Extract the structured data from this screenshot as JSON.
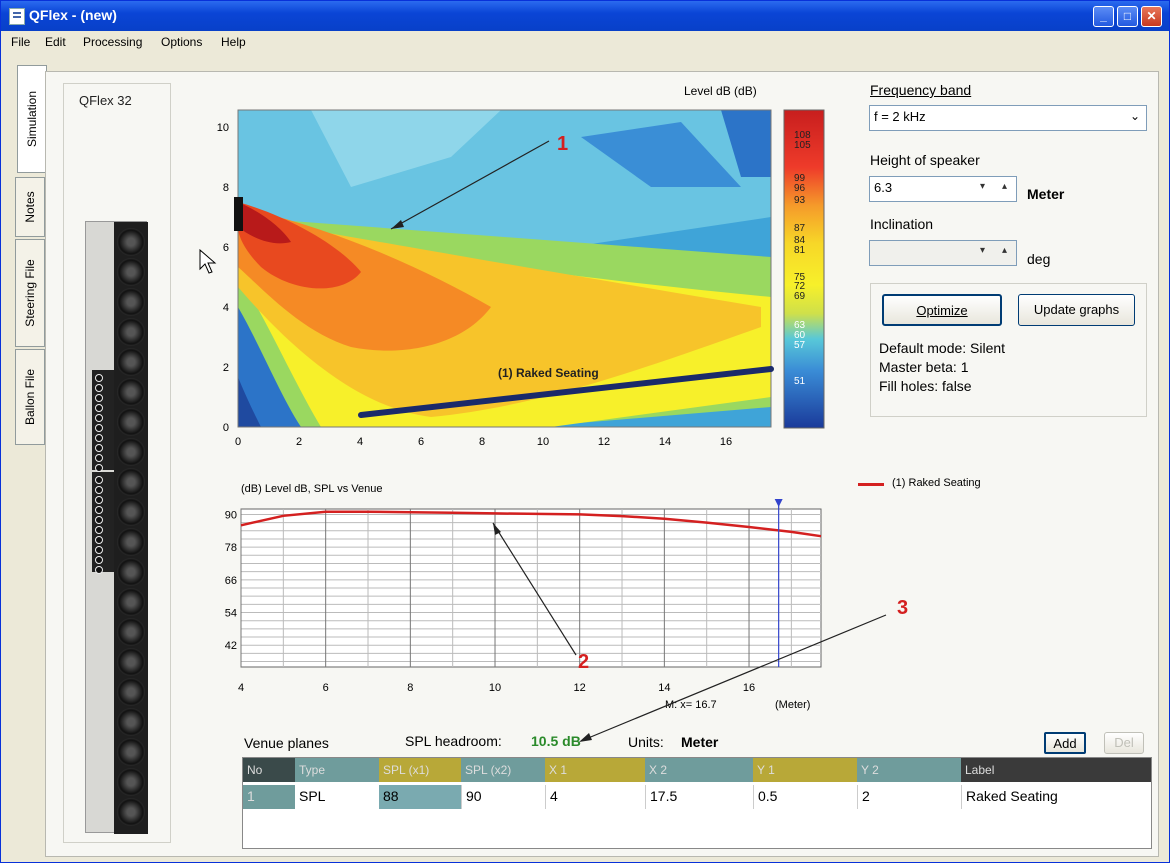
{
  "window": {
    "title": "QFlex - (new)"
  },
  "menu": [
    "File",
    "Edit",
    "Processing",
    "Options",
    "Help"
  ],
  "side_tabs": [
    "Simulation",
    "Notes",
    "Steering File",
    "Ballon File"
  ],
  "speaker_title": "QFlex 32",
  "colormap": {
    "title": "Level dB  (dB)",
    "y_ticks": [
      "10",
      "8",
      "6",
      "4",
      "2",
      "0"
    ],
    "x_ticks": [
      "0",
      "2",
      "4",
      "6",
      "8",
      "10",
      "12",
      "14",
      "16"
    ],
    "scale_labels": [
      "108",
      "105",
      "99",
      "96",
      "93",
      "87",
      "84",
      "81",
      "75",
      "72",
      "69",
      "63",
      "60",
      "57",
      "51"
    ],
    "line_label": "(1) Raked Seating"
  },
  "chart_data": {
    "type": "line",
    "title": "(dB)  Level dB, SPL vs Venue",
    "xlabel": "(Meter)",
    "x_ticks": [
      "4",
      "6",
      "8",
      "10",
      "12",
      "14",
      "16"
    ],
    "y_ticks": [
      "90",
      "78",
      "66",
      "54",
      "42"
    ],
    "xlim": [
      4,
      17.7
    ],
    "ylim": [
      34,
      92
    ],
    "series": [
      {
        "name": "(1) Raked Seating",
        "color": "#d42020",
        "x": [
          4,
          5,
          6,
          7,
          8,
          9,
          10,
          11,
          12,
          13,
          14,
          15,
          16,
          17,
          17.7
        ],
        "y": [
          86,
          89.5,
          91,
          91,
          90.8,
          90.6,
          90.4,
          90.2,
          90,
          89.4,
          88.4,
          87,
          85.4,
          83.6,
          82
        ]
      }
    ],
    "marker": {
      "x": 16.7,
      "label": "M:  x= 16.7"
    }
  },
  "frequency_band": {
    "label": "Frequency band",
    "value": "f = 2 kHz"
  },
  "height_of_speaker": {
    "label": "Height of speaker",
    "value": "6.3",
    "unit": "Meter"
  },
  "inclination": {
    "label": "Inclination",
    "value": "",
    "unit": "deg"
  },
  "buttons": {
    "optimize": "Optimize",
    "update_graphs": "Update graphs",
    "add": "Add",
    "del": "Del"
  },
  "status": [
    "Default mode: Silent",
    "Master beta: 1",
    "Fill holes: false"
  ],
  "venue": {
    "planes_label": "Venue planes",
    "headroom_label": "SPL headroom:",
    "headroom_value": "10.5 dB",
    "units_label": "Units:",
    "units_value": "Meter",
    "headers": [
      "No",
      "Type",
      "SPL (x1)",
      "SPL (x2)",
      "X 1",
      "X 2",
      "Y 1",
      "Y 2",
      "Label"
    ],
    "rows": [
      [
        "1",
        "SPL",
        "88",
        "90",
        "4",
        "17.5",
        "0.5",
        "2",
        "Raked Seating"
      ]
    ]
  },
  "annotations": [
    "1",
    "2",
    "3"
  ],
  "colors": {
    "accent": "#d42020",
    "headroom": "#2a8a2a",
    "title_bar": "#0a45d6"
  }
}
